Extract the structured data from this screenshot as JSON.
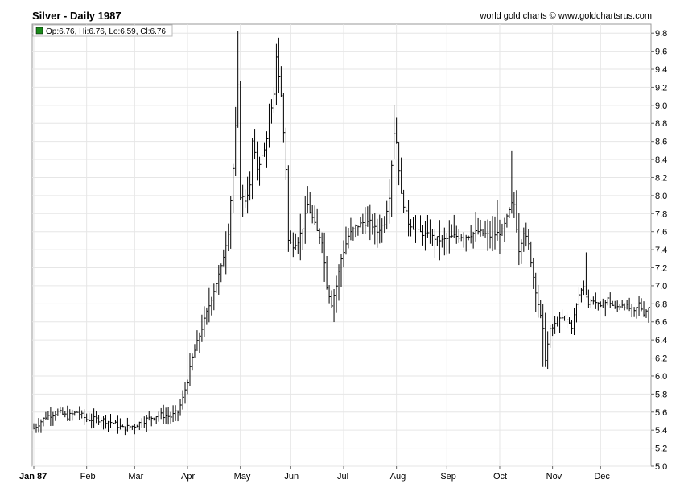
{
  "header": {
    "title": "Silver - Daily 1987",
    "credit": "world gold charts © www.goldchartsrus.com"
  },
  "legend": {
    "text": "Op:6.76, Hi:6.76, Lo:6.59, Cl:6.76",
    "swatch_color": "#1a8a1a"
  },
  "chart_data": {
    "type": "ohlc",
    "title": "Silver - Daily 1987",
    "ylim": [
      5.0,
      9.9
    ],
    "y_ticks": [
      "5.0",
      "5.2",
      "5.4",
      "5.6",
      "5.8",
      "6.0",
      "6.2",
      "6.4",
      "6.6",
      "6.8",
      "7.0",
      "7.2",
      "7.4",
      "7.6",
      "7.8",
      "8.0",
      "8.2",
      "8.4",
      "8.6",
      "8.8",
      "9.0",
      "9.2",
      "9.4",
      "9.6",
      "9.8"
    ],
    "x_ticks": [
      {
        "label": "Jan 87",
        "day": 0
      },
      {
        "label": "Feb",
        "day": 22
      },
      {
        "label": "Mar",
        "day": 42
      },
      {
        "label": "Apr",
        "day": 64
      },
      {
        "label": "May",
        "day": 86
      },
      {
        "label": "Jun",
        "day": 107
      },
      {
        "label": "Jul",
        "day": 129
      },
      {
        "label": "Aug",
        "day": 151
      },
      {
        "label": "Sep",
        "day": 172
      },
      {
        "label": "Oct",
        "day": 194
      },
      {
        "label": "Nov",
        "day": 216
      },
      {
        "label": "Dec",
        "day": 236
      }
    ],
    "x_range": [
      0,
      256
    ],
    "grid": true,
    "last_bar": {
      "open": 6.76,
      "high": 6.76,
      "low": 6.59,
      "close": 6.76
    },
    "anchors": [
      [
        0,
        5.42
      ],
      [
        5,
        5.55
      ],
      [
        10,
        5.6
      ],
      [
        14,
        5.55
      ],
      [
        18,
        5.6
      ],
      [
        22,
        5.52
      ],
      [
        28,
        5.52
      ],
      [
        33,
        5.48
      ],
      [
        37,
        5.42
      ],
      [
        42,
        5.45
      ],
      [
        47,
        5.52
      ],
      [
        52,
        5.57
      ],
      [
        57,
        5.55
      ],
      [
        60,
        5.6
      ],
      [
        62,
        5.75
      ],
      [
        64,
        5.95
      ],
      [
        66,
        6.2
      ],
      [
        69,
        6.45
      ],
      [
        72,
        6.7
      ],
      [
        75,
        6.95
      ],
      [
        78,
        7.2
      ],
      [
        81,
        7.6
      ],
      [
        83,
        8.3
      ],
      [
        85,
        9.2
      ],
      [
        86,
        8.0
      ],
      [
        88,
        7.95
      ],
      [
        90,
        8.1
      ],
      [
        91,
        8.6
      ],
      [
        93,
        8.3
      ],
      [
        96,
        8.5
      ],
      [
        98,
        8.8
      ],
      [
        100,
        9.1
      ],
      [
        101,
        9.55
      ],
      [
        103,
        9.1
      ],
      [
        105,
        8.3
      ],
      [
        106,
        7.5
      ],
      [
        108,
        7.45
      ],
      [
        110,
        7.5
      ],
      [
        112,
        7.65
      ],
      [
        114,
        7.9
      ],
      [
        116,
        7.75
      ],
      [
        118,
        7.6
      ],
      [
        120,
        7.5
      ],
      [
        122,
        7.0
      ],
      [
        124,
        6.8
      ],
      [
        126,
        7.0
      ],
      [
        128,
        7.3
      ],
      [
        131,
        7.55
      ],
      [
        134,
        7.65
      ],
      [
        137,
        7.7
      ],
      [
        140,
        7.7
      ],
      [
        143,
        7.6
      ],
      [
        146,
        7.7
      ],
      [
        148,
        8.0
      ],
      [
        150,
        8.7
      ],
      [
        151,
        8.6
      ],
      [
        153,
        8.0
      ],
      [
        156,
        7.7
      ],
      [
        160,
        7.6
      ],
      [
        165,
        7.55
      ],
      [
        170,
        7.5
      ],
      [
        175,
        7.55
      ],
      [
        180,
        7.55
      ],
      [
        185,
        7.6
      ],
      [
        190,
        7.55
      ],
      [
        195,
        7.6
      ],
      [
        197,
        7.75
      ],
      [
        199,
        7.9
      ],
      [
        200,
        7.9
      ],
      [
        202,
        7.4
      ],
      [
        204,
        7.6
      ],
      [
        206,
        7.45
      ],
      [
        208,
        7.1
      ],
      [
        210,
        6.8
      ],
      [
        212,
        6.5
      ],
      [
        213,
        6.2
      ],
      [
        215,
        6.5
      ],
      [
        218,
        6.6
      ],
      [
        221,
        6.65
      ],
      [
        224,
        6.55
      ],
      [
        227,
        6.9
      ],
      [
        229,
        7.0
      ],
      [
        231,
        6.8
      ],
      [
        233,
        6.85
      ],
      [
        236,
        6.75
      ],
      [
        239,
        6.85
      ],
      [
        242,
        6.75
      ],
      [
        245,
        6.8
      ],
      [
        248,
        6.75
      ],
      [
        250,
        6.7
      ],
      [
        252,
        6.8
      ],
      [
        254,
        6.7
      ],
      [
        256,
        6.76
      ]
    ],
    "spikes": [
      [
        85,
        9.82,
        8.75
      ],
      [
        101,
        9.68,
        9.0
      ],
      [
        150,
        9.0,
        8.4
      ],
      [
        199,
        8.5,
        7.8
      ],
      [
        230,
        7.37,
        6.9
      ],
      [
        212,
        6.8,
        6.1
      ],
      [
        213,
        6.7,
        6.1
      ],
      [
        193,
        7.95,
        7.5
      ]
    ]
  }
}
